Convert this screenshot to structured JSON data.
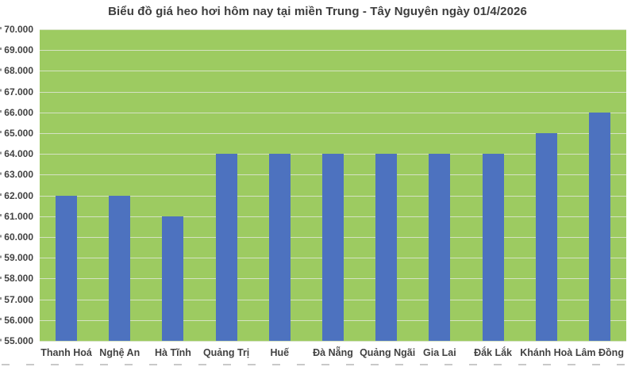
{
  "title": "Biểu đồ giá heo hơi hôm nay tại miền Trung - Tây Nguyên ngày 01/4/2026",
  "chart_data": {
    "type": "bar",
    "title": "Biểu đồ giá heo hơi hôm nay tại miền Trung - Tây Nguyên ngày 01/4/2026",
    "categories": [
      "Thanh Hoá",
      "Nghệ An",
      "Hà Tĩnh",
      "Quảng Trị",
      "Huế",
      "Đà Nẵng",
      "Quảng Ngãi",
      "Gia Lai",
      "Đắk Lắk",
      "Khánh Hoà",
      "Lâm Đồng"
    ],
    "values": [
      62000,
      62000,
      61000,
      64000,
      64000,
      64000,
      64000,
      64000,
      64000,
      65000,
      66000
    ],
    "xlabel": "",
    "ylabel": "",
    "ylim": [
      55000,
      70000
    ],
    "y_step": 1000,
    "y_tick_labels": [
      "70.000",
      "69.000",
      "68.000",
      "67.000",
      "66.000",
      "65.000",
      "64.000",
      "63.000",
      "62.000",
      "61.000",
      "60.000",
      "59.000",
      "58.000",
      "57.000",
      "56.000",
      "55.000"
    ],
    "grid": true,
    "legend_position": "none",
    "colors": {
      "bar": "#4d72bf",
      "plot_background": "#9dcb61",
      "gridline": "#d5e2c3",
      "title_text": "#3d3d3d",
      "axis_text": "#424242",
      "chart_background": "#ffffff"
    }
  }
}
